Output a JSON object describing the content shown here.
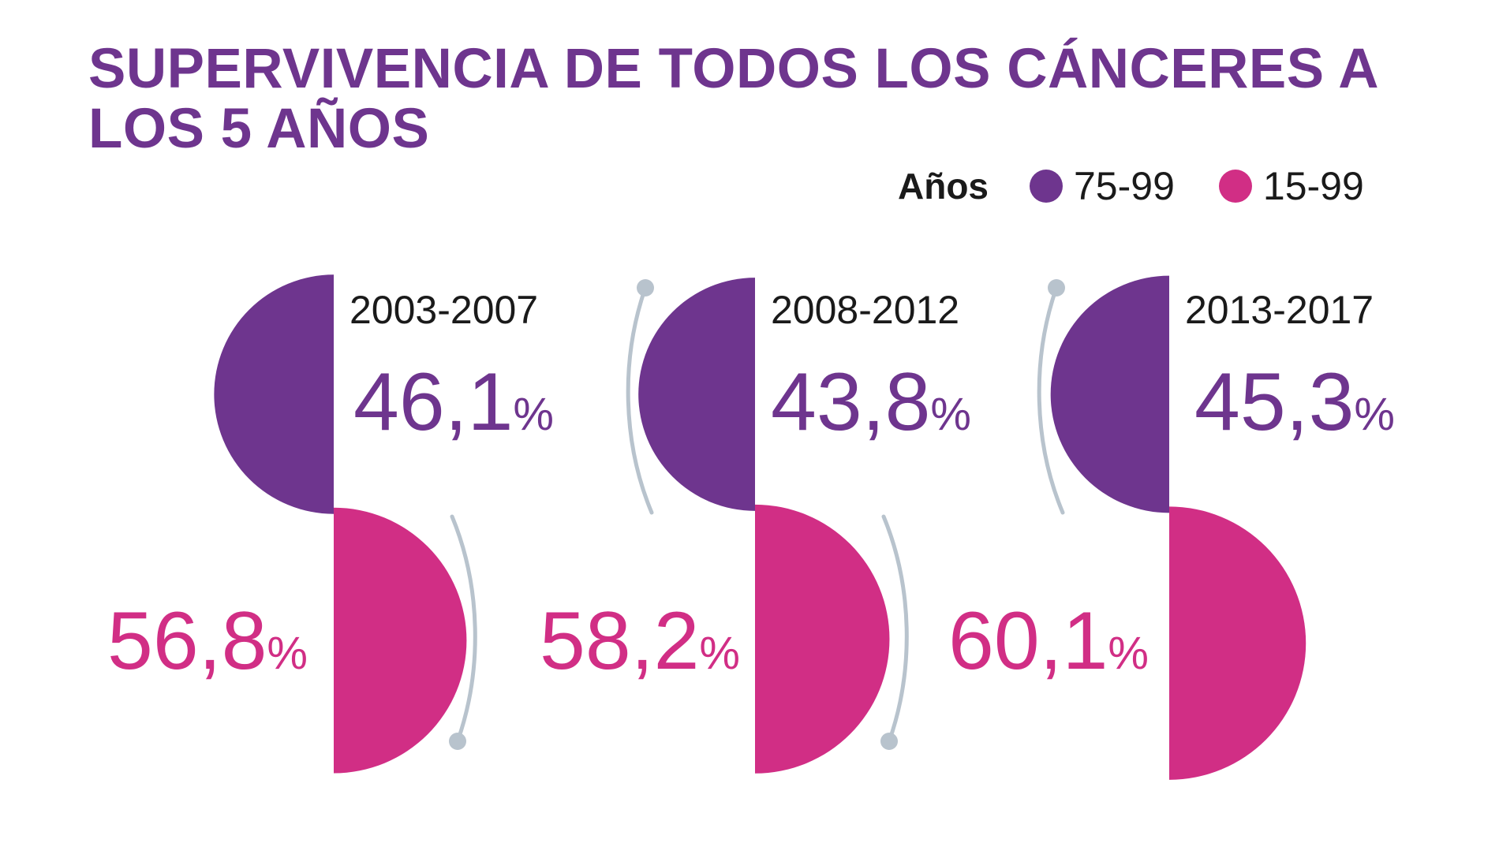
{
  "chart_data": {
    "type": "semicircle-comparison",
    "title": "SUPERVIVENCIA DE TODOS LOS CÁNCERES A LOS 5 AÑOS",
    "legend": {
      "title": "Años",
      "placement": "top-right",
      "entries": [
        {
          "label": "75-99",
          "color": "#6e358e"
        },
        {
          "label": "15-99",
          "color": "#d12e85"
        }
      ]
    },
    "unit": "%",
    "categories": [
      "2003-2007",
      "2008-2012",
      "2013-2017"
    ],
    "series": [
      {
        "name": "75-99",
        "color": "#6e358e",
        "values": [
          46.1,
          43.8,
          45.3
        ],
        "labels": [
          "46,1",
          "43,8",
          "45,3"
        ]
      },
      {
        "name": "15-99",
        "color": "#d12e85",
        "values": [
          56.8,
          58.2,
          60.1
        ],
        "labels": [
          "56,8",
          "58,2",
          "60,1"
        ]
      }
    ]
  },
  "colors": {
    "connector": "#b8c3cd",
    "label_text": "#1a1a1a"
  }
}
